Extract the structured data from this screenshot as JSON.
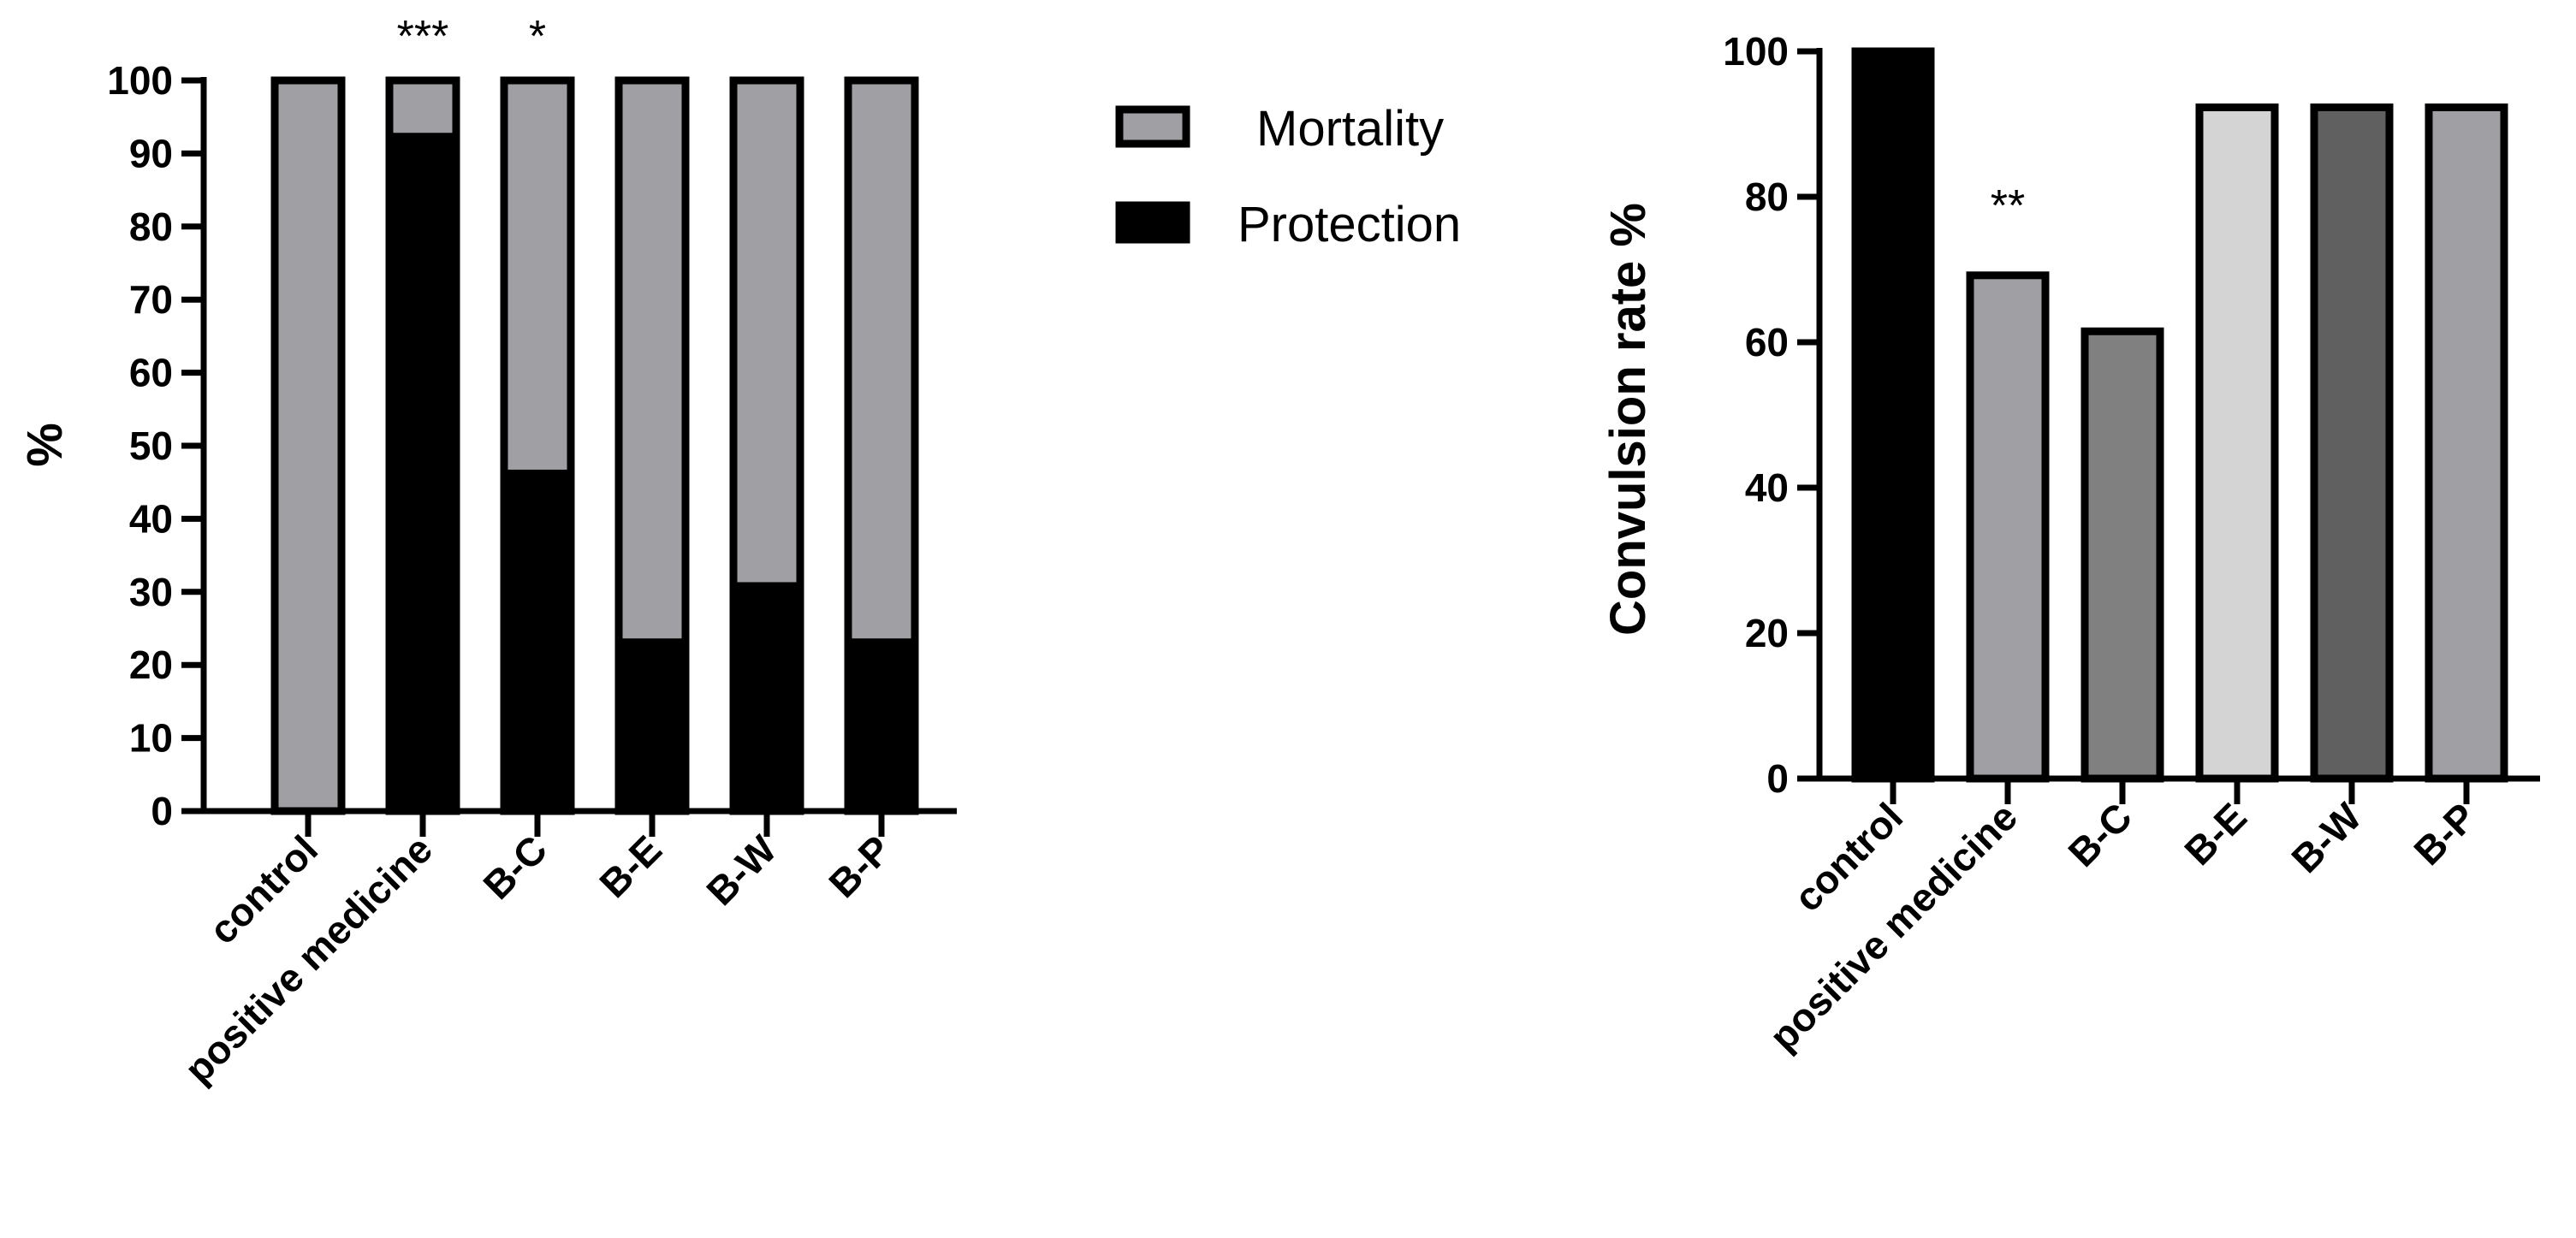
{
  "figure": {
    "background": "#ffffff"
  },
  "chart_data": [
    {
      "type": "bar",
      "stacked": true,
      "ylabel": "%",
      "ylim": [
        0,
        100
      ],
      "yticks": [
        0,
        10,
        20,
        30,
        40,
        50,
        60,
        70,
        80,
        90,
        100
      ],
      "categories": [
        "control",
        "positive medicine",
        "B-C",
        "B-E",
        "B-W",
        "B-P"
      ],
      "series": [
        {
          "name": "Protection",
          "color": "#000000",
          "values": [
            0,
            92.3,
            46.2,
            23.1,
            30.8,
            23.1
          ]
        },
        {
          "name": "Mortality",
          "color": "#a0a0a4",
          "values": [
            100,
            7.7,
            53.8,
            76.9,
            69.2,
            76.9
          ]
        }
      ],
      "legend": {
        "placement": "right",
        "entries": [
          "Mortality",
          "Protection"
        ]
      },
      "annotations": [
        {
          "category": "positive medicine",
          "text": "***"
        },
        {
          "category": "B-C",
          "text": "*"
        }
      ]
    },
    {
      "type": "bar",
      "ylabel": "Convulsion rate %",
      "ylim": [
        0,
        100
      ],
      "yticks": [
        0,
        20,
        40,
        60,
        80,
        100
      ],
      "categories": [
        "control",
        "positive medicine",
        "B-C",
        "B-E",
        "B-W",
        "B-P"
      ],
      "values": [
        100,
        69.2,
        61.5,
        92.3,
        92.3,
        92.3
      ],
      "colors": [
        "#000000",
        "#a0a0a4",
        "#808080",
        "#d4d4d4",
        "#606060",
        "#a0a0a4"
      ],
      "annotations": [
        {
          "category": "positive medicine",
          "text": "**"
        }
      ]
    }
  ]
}
